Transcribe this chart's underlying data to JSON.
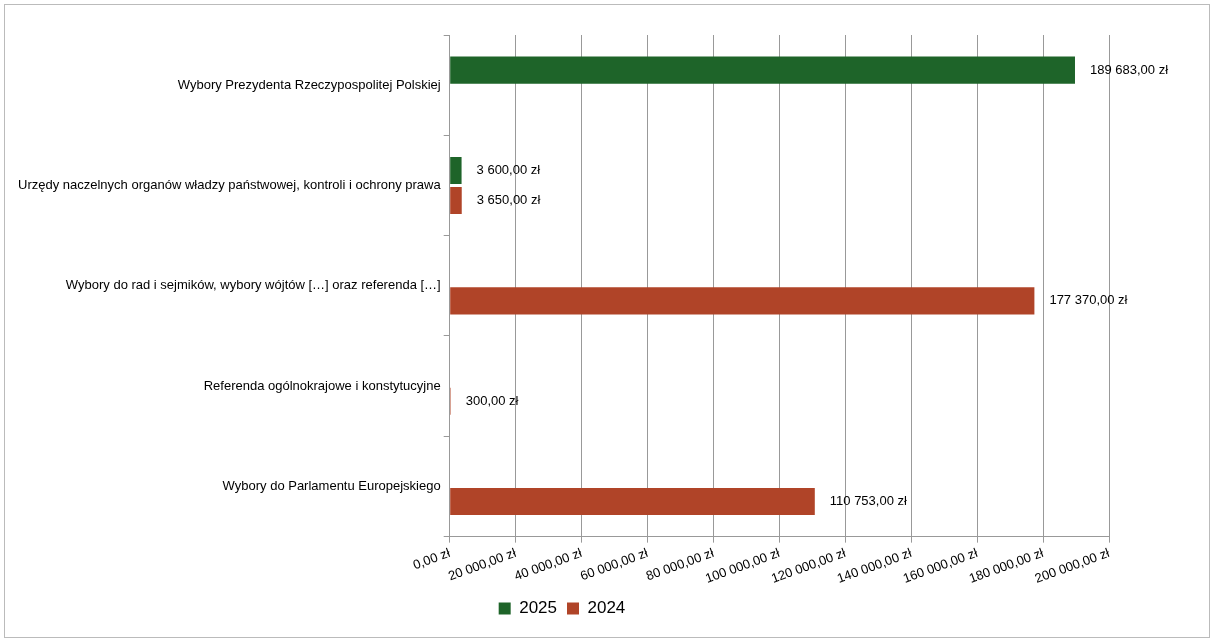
{
  "chart_data": {
    "type": "bar",
    "orientation": "horizontal",
    "categories": [
      "Wybory Prezydenta Rzeczypospolitej Polskiej",
      "Urzędy naczelnych organów władzy państwowej, kontroli i ochrony prawa",
      "Wybory do rad i sejmików, wybory wójtów […] oraz referenda […]",
      "Referenda ogólnokrajowe i konstytucyjne",
      "Wybory do Parlamentu Europejskiego"
    ],
    "series": [
      {
        "name": "2025",
        "color": "#1e6429",
        "values": [
          189683,
          3600,
          null,
          null,
          null
        ],
        "value_labels": [
          "189 683,00 zł",
          "3 600,00 zł",
          null,
          null,
          null
        ]
      },
      {
        "name": "2024",
        "color": "#b04428",
        "values": [
          null,
          3650,
          177370,
          300,
          110753
        ],
        "value_labels": [
          null,
          "3 650,00 zł",
          "177 370,00 zł",
          "300,00 zł",
          "110 753,00 zł"
        ]
      }
    ],
    "xlim": [
      0,
      200000
    ],
    "xticks": [
      {
        "value": 0,
        "label": "0,00 zł"
      },
      {
        "value": 20000,
        "label": "20 000,00 zł"
      },
      {
        "value": 40000,
        "label": "40 000,00 zł"
      },
      {
        "value": 60000,
        "label": "60 000,00 zł"
      },
      {
        "value": 80000,
        "label": "80 000,00 zł"
      },
      {
        "value": 100000,
        "label": "100 000,00 zł"
      },
      {
        "value": 120000,
        "label": "120 000,00 zł"
      },
      {
        "value": 140000,
        "label": "140 000,00 zł"
      },
      {
        "value": 160000,
        "label": "160 000,00 zł"
      },
      {
        "value": 180000,
        "label": "180 000,00 zł"
      },
      {
        "value": 200000,
        "label": "200 000,00 zł"
      }
    ],
    "grid": "x",
    "legend": "bottom"
  }
}
